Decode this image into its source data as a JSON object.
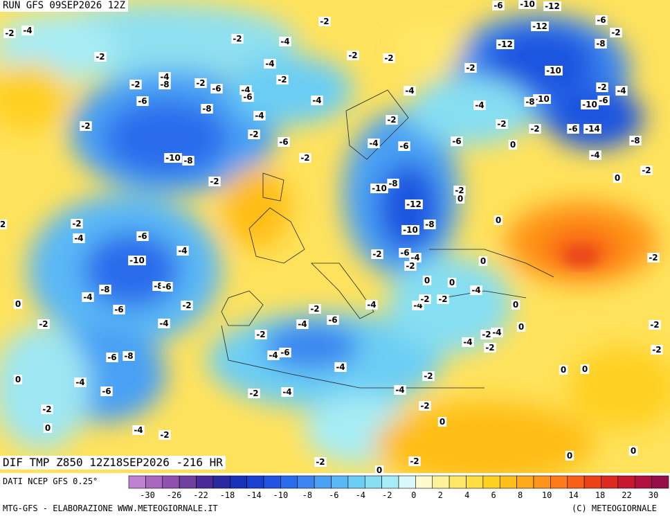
{
  "header": {
    "run": "RUN GFS 09SEP2026 12Z",
    "field": "DIF TMP Z850 12Z18SEP2026 -216 HR"
  },
  "footer": {
    "source": "DATI NCEP GFS 0.25°",
    "credit": "MTG-GFS - ELABORAZIONE WWW.METEOGIORNALE.IT",
    "copyright": "(C) METEOGIORNALE"
  },
  "legend": {
    "labels": [
      "-30",
      "-26",
      "-22",
      "-18",
      "-14",
      "-10",
      "-8",
      "-6",
      "-4",
      "-2",
      "0",
      "2",
      "4",
      "6",
      "8",
      "10",
      "14",
      "18",
      "22",
      "30"
    ],
    "colors": [
      "#c080d0",
      "#a868c0",
      "#9050b0",
      "#7040a0",
      "#4a2a98",
      "#2a2aa0",
      "#1a30b8",
      "#1a40d0",
      "#1f55e0",
      "#2a6cec",
      "#3a85f0",
      "#4aa0f4",
      "#5ab8f6",
      "#6ccef4",
      "#86def2",
      "#a6ecf4",
      "#d8f8fa",
      "#fffad0",
      "#fff29a",
      "#ffe868",
      "#ffde40",
      "#ffd020",
      "#ffbe18",
      "#ffaa18",
      "#ff9418",
      "#ff7c18",
      "#f86018",
      "#ec4218",
      "#dc2a20",
      "#c81830",
      "#b01040",
      "#980c48"
    ]
  },
  "map": {
    "contour_labels": [
      "-2",
      "-4",
      "-2",
      "-2",
      "-4",
      "-8",
      "-2",
      "-6",
      "-4",
      "-6",
      "-6",
      "-8",
      "-4",
      "-2",
      "-2",
      "-6",
      "-10",
      "-8",
      "-2",
      "-2",
      "-2",
      "-4",
      "-4",
      "-2",
      "-2",
      "-4",
      "-2",
      "-2",
      "-4",
      "-2",
      "-4",
      "-6",
      "-6",
      "-4",
      "-2",
      "-2",
      "0",
      "-2",
      "-12",
      "-12",
      "-10",
      "-10",
      "-8",
      "-6",
      "-10",
      "-12",
      "-6",
      "-2",
      "-8",
      "-2",
      "-4",
      "-6",
      "-10",
      "-6",
      "-14",
      "-8",
      "-4",
      "-2",
      "0",
      "-8",
      "-10",
      "-12",
      "-10",
      "-8",
      "-2",
      "0",
      "0",
      "-2",
      "-4",
      "-6",
      "-4",
      "-10",
      "-8",
      "-6",
      "-4",
      "-8",
      "-6",
      "-2",
      "-4",
      "0",
      "-2",
      "-6",
      "-8",
      "-4",
      "-6",
      "0",
      "-2",
      "0",
      "-4",
      "-2",
      "-2",
      "-4",
      "-2",
      "-4",
      "-6",
      "-4",
      "-6",
      "-2",
      "-4",
      "-4",
      "-2",
      "-6",
      "-4",
      "-2",
      "0",
      "0",
      "-4",
      "-4",
      "-2",
      "-2",
      "0",
      "0",
      "-2",
      "-4",
      "-4",
      "-2",
      "0",
      "-2",
      "-4",
      "-2",
      "0",
      "0",
      "0",
      "-2",
      "-2",
      "-2",
      "0",
      "0",
      "-2",
      "0",
      "-2",
      "2"
    ]
  }
}
